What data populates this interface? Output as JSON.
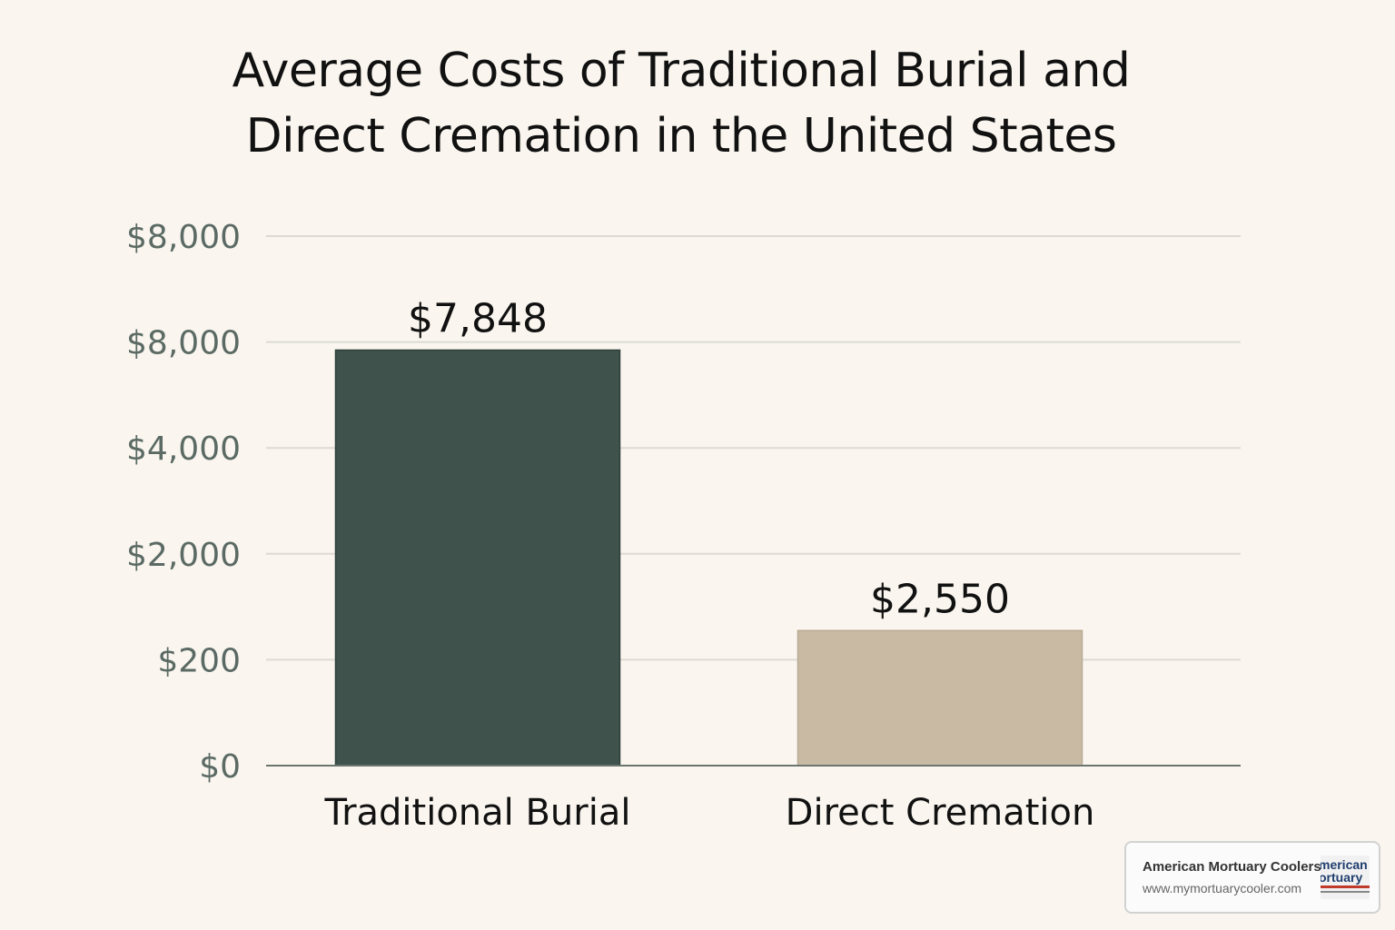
{
  "chart_data": {
    "type": "bar",
    "title_lines": [
      "Average Costs of Traditional Burial and",
      "Direct Cremation in the United States"
    ],
    "categories": [
      "Traditional Burial",
      "Direct Cremation"
    ],
    "values": [
      7848,
      2550
    ],
    "data_labels": [
      "$7,848",
      "$2,550"
    ],
    "y_tick_labels": [
      "$0",
      "$200",
      "$2,000",
      "$4,000",
      "$8,000",
      "$8,000"
    ],
    "ylim": [
      0,
      10000
    ],
    "grid": true,
    "legend": "none",
    "colors": [
      "#3f524c",
      "#c9bba3"
    ]
  },
  "watermark": {
    "name": "American Mortuary Coolers",
    "url": "www.mymortuarycooler.com",
    "logo_text_1": "merican",
    "logo_text_2": "ortuary"
  }
}
